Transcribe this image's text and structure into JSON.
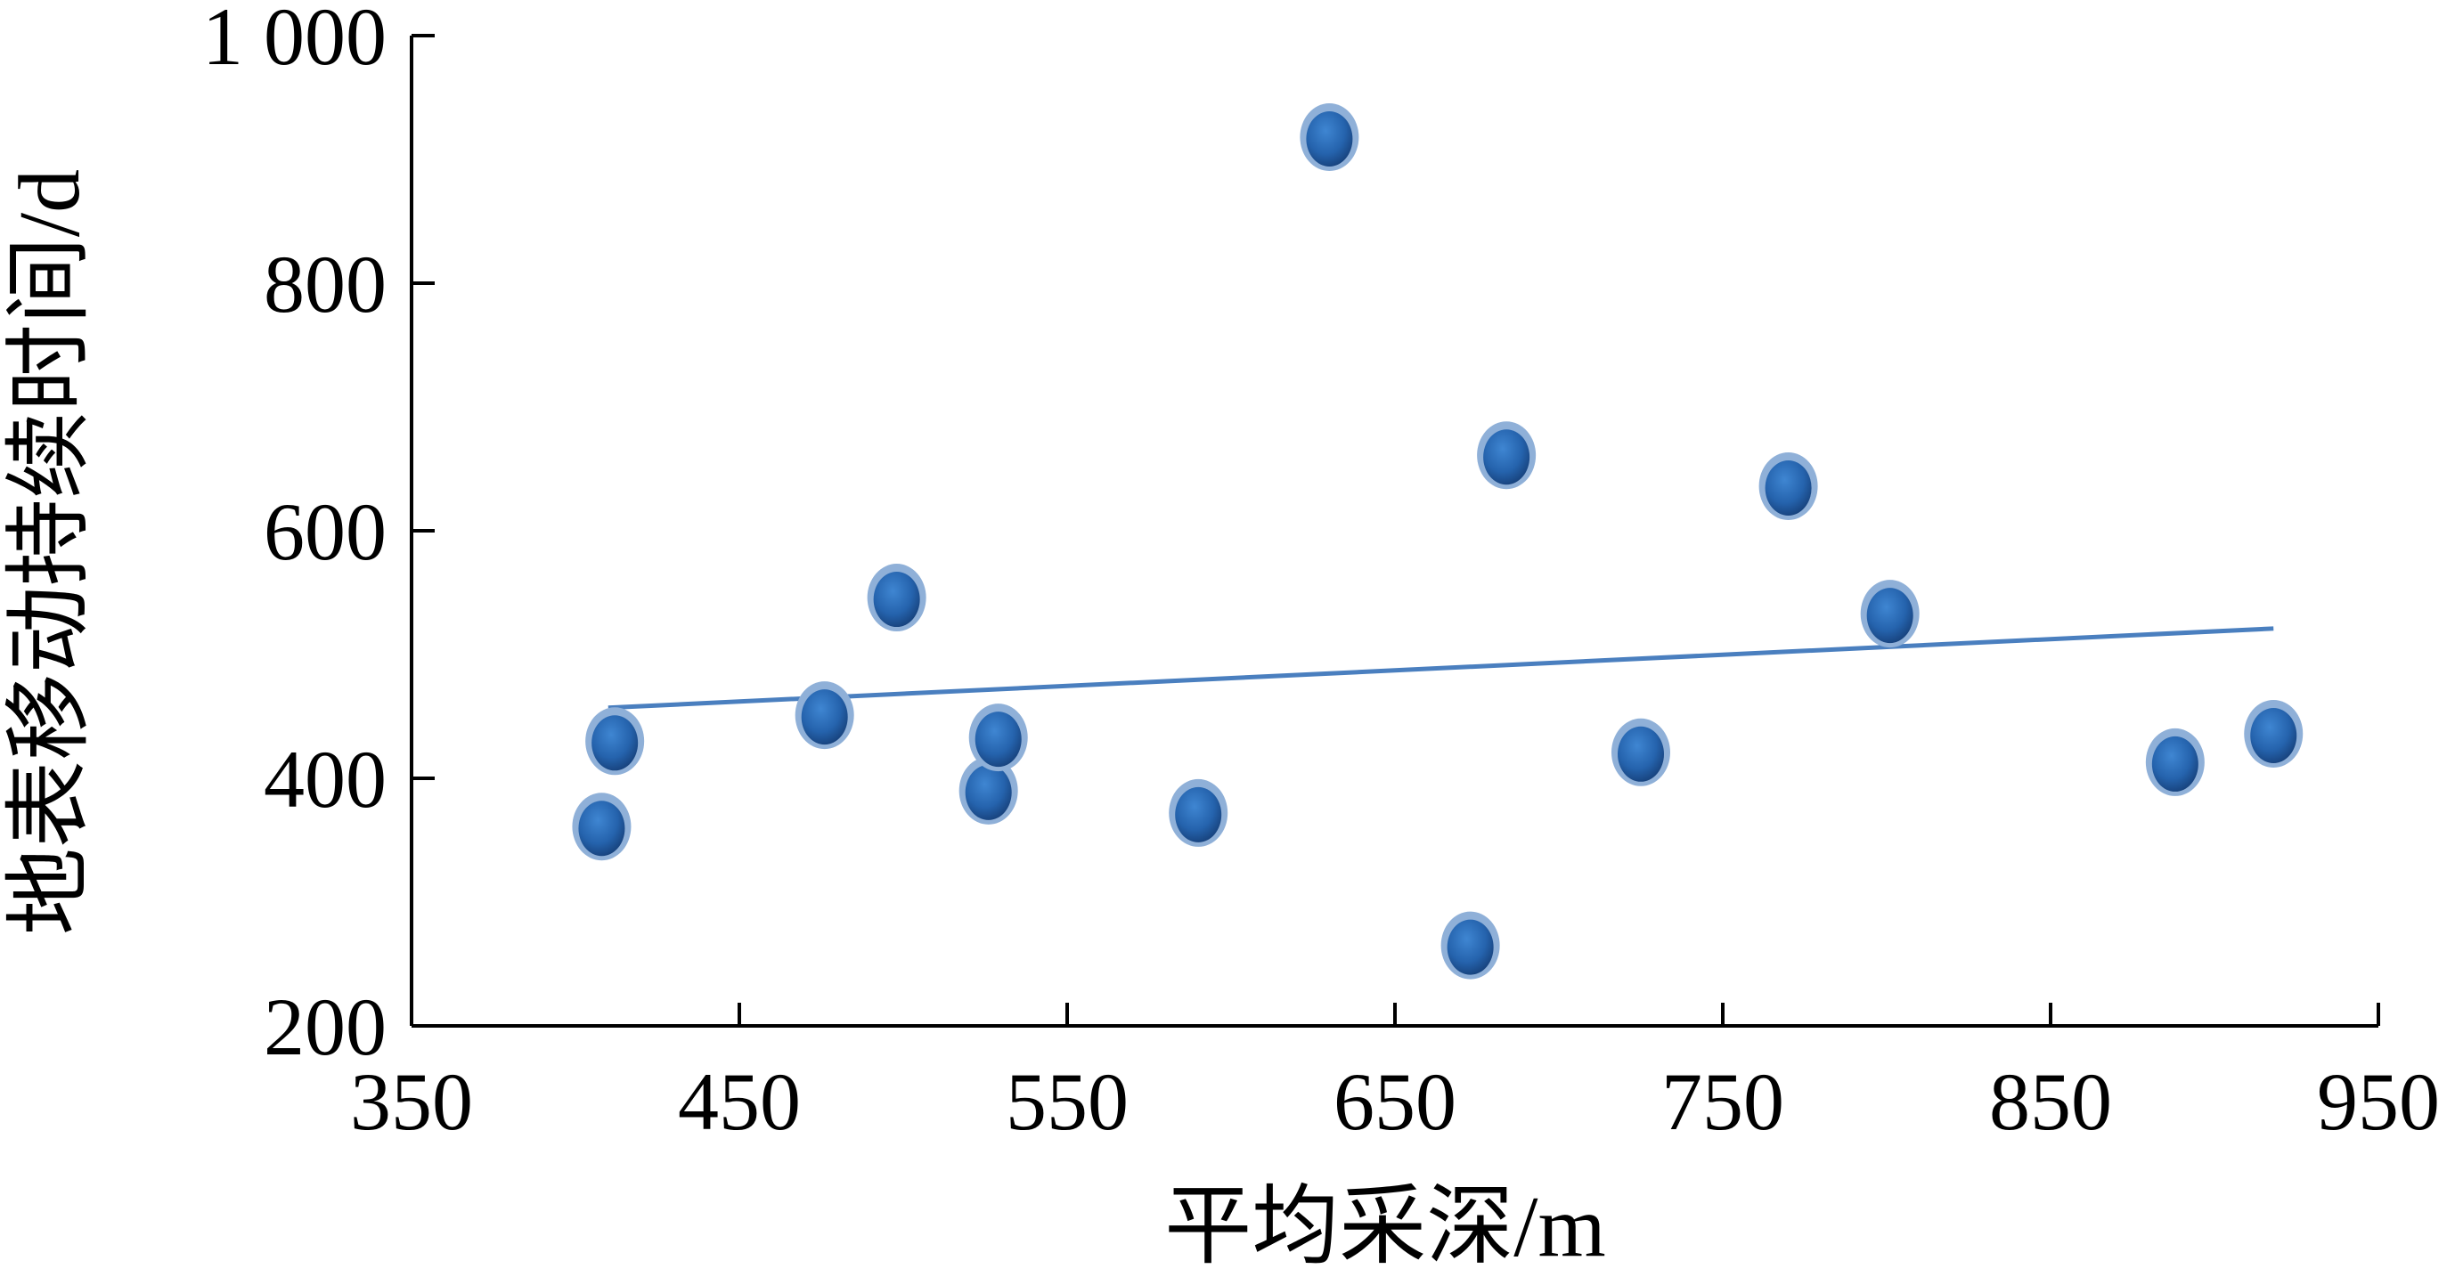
{
  "chart_data": {
    "type": "scatter",
    "title": "",
    "xlabel": "平均采深/m",
    "ylabel": "地表移动持续时间/d",
    "xlim": [
      350,
      950
    ],
    "ylim": [
      200,
      1000
    ],
    "x_ticks": [
      350,
      450,
      550,
      650,
      750,
      850,
      950
    ],
    "y_ticks": [
      200,
      400,
      600,
      800,
      1000
    ],
    "x_tick_labels": [
      "350",
      "450",
      "550",
      "650",
      "750",
      "850",
      "950"
    ],
    "y_tick_labels": [
      "200",
      "400",
      "600",
      "800",
      "1 000"
    ],
    "grid": false,
    "legend": "none",
    "point_color": "#2e6db6",
    "trendline_color": "#4a7fbf",
    "series": [
      {
        "values": [
          {
            "x": 408,
            "y": 361
          },
          {
            "x": 412,
            "y": 430
          },
          {
            "x": 476,
            "y": 451
          },
          {
            "x": 498,
            "y": 546
          },
          {
            "x": 526,
            "y": 390
          },
          {
            "x": 529,
            "y": 433
          },
          {
            "x": 590,
            "y": 372
          },
          {
            "x": 630,
            "y": 918
          },
          {
            "x": 673,
            "y": 265
          },
          {
            "x": 684,
            "y": 661
          },
          {
            "x": 725,
            "y": 421
          },
          {
            "x": 770,
            "y": 636
          },
          {
            "x": 801,
            "y": 533
          },
          {
            "x": 888,
            "y": 413
          },
          {
            "x": 918,
            "y": 436
          }
        ]
      }
    ],
    "trendline": {
      "x": [
        410,
        918
      ],
      "y": [
        457,
        521
      ]
    }
  }
}
